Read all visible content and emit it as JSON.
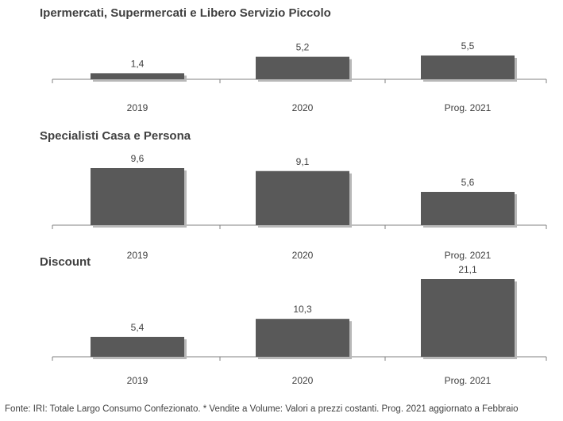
{
  "chart_data": [
    {
      "type": "bar",
      "title": "Ipermercati,  Supermercati e Libero Servizio Piccolo",
      "categories": [
        "2019",
        "2020",
        "Prog. 2021"
      ],
      "values": [
        1.4,
        5.2,
        5.5
      ],
      "value_labels": [
        "1,4",
        "5,2",
        "5,5"
      ],
      "ylim": [
        0,
        6
      ],
      "xlabel": "",
      "ylabel": "",
      "grid": false
    },
    {
      "type": "bar",
      "title": "Specialisti  Casa e Persona",
      "categories": [
        "2019",
        "2020",
        "Prog. 2021"
      ],
      "values": [
        9.6,
        9.1,
        5.6
      ],
      "value_labels": [
        "9,6",
        "9,1",
        "5,6"
      ],
      "ylim": [
        0,
        10.5
      ],
      "xlabel": "",
      "ylabel": "",
      "grid": false
    },
    {
      "type": "bar",
      "title": "Discount",
      "categories": [
        "2019",
        "2020",
        "Prog. 2021"
      ],
      "values": [
        5.4,
        10.3,
        21.1
      ],
      "value_labels": [
        "5,4",
        "10,3",
        "21,1"
      ],
      "ylim": [
        0,
        25
      ],
      "xlabel": "",
      "ylabel": "",
      "grid": false
    }
  ],
  "footnote": "Fonte: IRI: Totale Largo Consumo Confezionato. * Vendite a Volume: Valori a prezzi  costanti.   Prog. 2021 aggiornato a Febbraio",
  "colors": {
    "bar": "#595959",
    "shadow": "#b8b8b8",
    "axis": "#808080",
    "text": "#404040"
  }
}
